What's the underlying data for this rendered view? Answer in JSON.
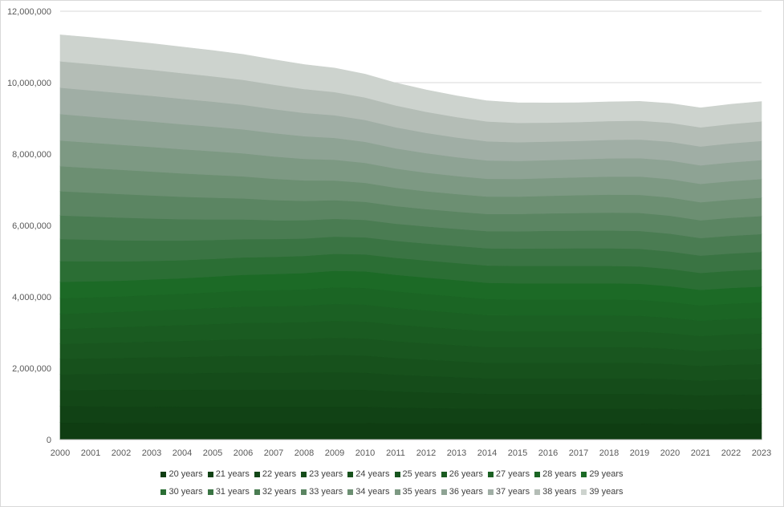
{
  "chart_data": {
    "type": "area",
    "stacked": true,
    "title": "",
    "xlabel": "",
    "ylabel": "",
    "x": [
      2000,
      2001,
      2002,
      2003,
      2004,
      2005,
      2006,
      2007,
      2008,
      2009,
      2010,
      2011,
      2012,
      2013,
      2014,
      2015,
      2016,
      2017,
      2018,
      2019,
      2020,
      2021,
      2022,
      2023
    ],
    "ylim": [
      0,
      12000000
    ],
    "yticks": [
      0,
      2000000,
      4000000,
      6000000,
      8000000,
      10000000,
      12000000
    ],
    "ytick_labels": [
      "0",
      "2,000,000",
      "4,000,000",
      "6,000,000",
      "8,000,000",
      "10,000,000",
      "12,000,000"
    ],
    "grid": "horizontal",
    "legend_position": "bottom",
    "series": [
      {
        "name": "20 years",
        "color": "#0f3d12",
        "values": [
          480000,
          475000,
          470000,
          468000,
          466000,
          466000,
          466000,
          466000,
          466000,
          466000,
          466000,
          460000,
          458000,
          456000,
          455000,
          455000,
          455000,
          455000,
          455000,
          455000,
          450000,
          440000,
          450000,
          460000
        ]
      },
      {
        "name": "21 years",
        "color": "#114215",
        "values": [
          460000,
          460000,
          460000,
          460000,
          460000,
          460000,
          460000,
          460000,
          460000,
          460000,
          460000,
          440000,
          430000,
          420000,
          410000,
          410000,
          410000,
          410000,
          410000,
          410000,
          410000,
          400000,
          400000,
          400000
        ]
      },
      {
        "name": "22 years",
        "color": "#134717",
        "values": [
          450000,
          460000,
          470000,
          470000,
          470000,
          475000,
          480000,
          475000,
          475000,
          480000,
          470000,
          455000,
          440000,
          430000,
          420000,
          420000,
          420000,
          420000,
          420000,
          420000,
          415000,
          400000,
          410000,
          410000
        ]
      },
      {
        "name": "23 years",
        "color": "#154c1a",
        "values": [
          440000,
          445000,
          450000,
          460000,
          465000,
          470000,
          475000,
          475000,
          480000,
          485000,
          480000,
          465000,
          455000,
          445000,
          430000,
          430000,
          430000,
          430000,
          430000,
          430000,
          420000,
          410000,
          420000,
          420000
        ]
      },
      {
        "name": "24 years",
        "color": "#17511c",
        "values": [
          430000,
          435000,
          440000,
          450000,
          455000,
          462000,
          470000,
          472000,
          475000,
          485000,
          480000,
          468000,
          458000,
          448000,
          438000,
          438000,
          438000,
          438000,
          438000,
          435000,
          425000,
          415000,
          420000,
          425000
        ]
      },
      {
        "name": "25 years",
        "color": "#19561f",
        "values": [
          420000,
          428000,
          435000,
          440000,
          450000,
          455000,
          462000,
          466000,
          470000,
          480000,
          478000,
          470000,
          460000,
          450000,
          442000,
          440000,
          440000,
          440000,
          440000,
          438000,
          428000,
          418000,
          422000,
          428000
        ]
      },
      {
        "name": "26 years",
        "color": "#1a5b21",
        "values": [
          420000,
          425000,
          430000,
          438000,
          445000,
          452000,
          458000,
          462000,
          466000,
          476000,
          476000,
          468000,
          460000,
          452000,
          445000,
          442000,
          442000,
          442000,
          442000,
          440000,
          432000,
          422000,
          426000,
          430000
        ]
      },
      {
        "name": "27 years",
        "color": "#1b6023",
        "values": [
          420000,
          424000,
          428000,
          434000,
          440000,
          448000,
          454000,
          458000,
          462000,
          470000,
          472000,
          466000,
          460000,
          454000,
          448000,
          445000,
          445000,
          445000,
          445000,
          443000,
          436000,
          426000,
          430000,
          434000
        ]
      },
      {
        "name": "28 years",
        "color": "#1b6524",
        "values": [
          440000,
          435000,
          430000,
          432000,
          436000,
          442000,
          448000,
          454000,
          458000,
          466000,
          468000,
          464000,
          460000,
          456000,
          452000,
          448000,
          448000,
          448000,
          448000,
          446000,
          440000,
          430000,
          434000,
          438000
        ]
      },
      {
        "name": "29 years",
        "color": "#1c6a26",
        "values": [
          460000,
          450000,
          440000,
          436000,
          434000,
          438000,
          444000,
          450000,
          456000,
          462000,
          464000,
          462000,
          460000,
          458000,
          454000,
          452000,
          452000,
          452000,
          452000,
          450000,
          444000,
          434000,
          438000,
          442000
        ]
      },
      {
        "name": "30 years",
        "color": "#2b6e34",
        "values": [
          580000,
          560000,
          540000,
          520000,
          505000,
          495000,
          488000,
          482000,
          478000,
          476000,
          476000,
          476000,
          478000,
          480000,
          484000,
          486000,
          488000,
          488000,
          488000,
          486000,
          482000,
          476000,
          478000,
          480000
        ]
      },
      {
        "name": "31 years",
        "color": "#3a7443",
        "values": [
          620000,
          605000,
          590000,
          570000,
          550000,
          530000,
          512000,
          498000,
          488000,
          482000,
          478000,
          476000,
          476000,
          478000,
          482000,
          486000,
          490000,
          492000,
          494000,
          494000,
          490000,
          484000,
          488000,
          492000
        ]
      },
      {
        "name": "32 years",
        "color": "#4a7c52",
        "values": [
          660000,
          648000,
          636000,
          618000,
          598000,
          576000,
          552000,
          530000,
          512000,
          498000,
          488000,
          480000,
          478000,
          478000,
          480000,
          484000,
          490000,
          494000,
          498000,
          500000,
          498000,
          492000,
          496000,
          500000
        ]
      },
      {
        "name": "33 years",
        "color": "#5b8562",
        "values": [
          680000,
          670000,
          660000,
          646000,
          630000,
          610000,
          588000,
          564000,
          542000,
          522000,
          506000,
          494000,
          486000,
          482000,
          482000,
          484000,
          490000,
          496000,
          500000,
          504000,
          504000,
          498000,
          502000,
          506000
        ]
      },
      {
        "name": "34 years",
        "color": "#6c8f72",
        "values": [
          700000,
          690000,
          680000,
          668000,
          654000,
          638000,
          618000,
          596000,
          574000,
          552000,
          532000,
          514000,
          500000,
          492000,
          488000,
          488000,
          492000,
          498000,
          504000,
          508000,
          510000,
          506000,
          510000,
          514000
        ]
      },
      {
        "name": "35 years",
        "color": "#7d9983",
        "values": [
          720000,
          710000,
          700000,
          690000,
          678000,
          664000,
          646000,
          626000,
          604000,
          582000,
          560000,
          538000,
          520000,
          506000,
          498000,
          494000,
          496000,
          500000,
          506000,
          512000,
          516000,
          514000,
          518000,
          522000
        ]
      },
      {
        "name": "36 years",
        "color": "#8ea394",
        "values": [
          740000,
          730000,
          720000,
          710000,
          700000,
          688000,
          672000,
          654000,
          634000,
          612000,
          590000,
          566000,
          546000,
          528000,
          514000,
          506000,
          504000,
          506000,
          510000,
          516000,
          520000,
          520000,
          526000,
          530000
        ]
      },
      {
        "name": "37 years",
        "color": "#a0aea5",
        "values": [
          740000,
          736000,
          730000,
          722000,
          712000,
          700000,
          688000,
          672000,
          654000,
          634000,
          612000,
          590000,
          570000,
          552000,
          536000,
          524000,
          518000,
          516000,
          518000,
          522000,
          526000,
          528000,
          534000,
          538000
        ]
      },
      {
        "name": "38 years",
        "color": "#b4bdb6",
        "values": [
          740000,
          738000,
          734000,
          728000,
          720000,
          710000,
          698000,
          684000,
          668000,
          650000,
          630000,
          610000,
          590000,
          572000,
          556000,
          542000,
          532000,
          526000,
          526000,
          528000,
          532000,
          536000,
          542000,
          546000
        ]
      },
      {
        "name": "39 years",
        "color": "#cdd3ce",
        "values": [
          740000,
          742000,
          740000,
          736000,
          730000,
          722000,
          712000,
          700000,
          686000,
          670000,
          652000,
          632000,
          612000,
          594000,
          578000,
          562000,
          550000,
          542000,
          538000,
          538000,
          540000,
          545000,
          550000,
          555000
        ]
      }
    ]
  }
}
